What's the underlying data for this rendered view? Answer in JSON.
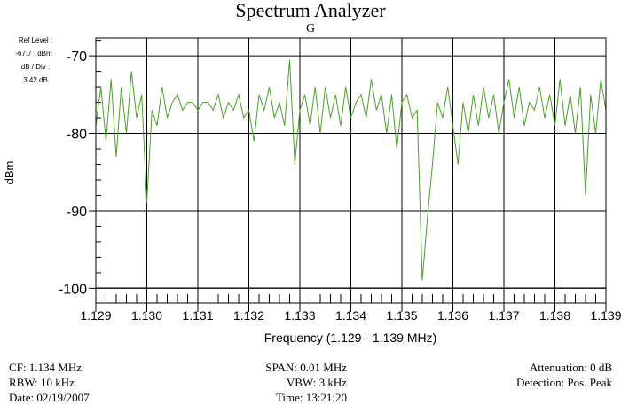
{
  "chart_data": {
    "type": "line",
    "title": "Spectrum Analyzer",
    "subtitle": "G",
    "xlabel": "Frequency (1.129 - 1.139 MHz)",
    "ylabel": "dBm",
    "xlim": [
      1.129,
      1.139
    ],
    "ylim": [
      -101.9,
      -67.7
    ],
    "grid": true,
    "line_color": "#4c9e2c",
    "x_ticks": [
      "1.129",
      "1.130",
      "1.131",
      "1.132",
      "1.133",
      "1.134",
      "1.135",
      "1.136",
      "1.137",
      "1.138",
      "1.139"
    ],
    "y_ticks": [
      "-70",
      "-80",
      "-90",
      "-100"
    ],
    "y_tick_values": [
      -70,
      -80,
      -90,
      -100
    ],
    "x": [
      1.129,
      1.1291,
      1.1292,
      1.1293,
      1.1294,
      1.1295,
      1.1296,
      1.1297,
      1.1298,
      1.1299,
      1.13,
      1.1301,
      1.1302,
      1.1303,
      1.1304,
      1.1305,
      1.1306,
      1.1307,
      1.1308,
      1.1309,
      1.131,
      1.1311,
      1.1312,
      1.1313,
      1.1314,
      1.1315,
      1.1316,
      1.1317,
      1.1318,
      1.1319,
      1.132,
      1.1321,
      1.1322,
      1.1323,
      1.1324,
      1.1325,
      1.1326,
      1.1327,
      1.1328,
      1.1329,
      1.133,
      1.1331,
      1.1332,
      1.1333,
      1.1334,
      1.1335,
      1.1336,
      1.1337,
      1.1338,
      1.1339,
      1.134,
      1.1341,
      1.1342,
      1.1343,
      1.1344,
      1.1345,
      1.1346,
      1.1347,
      1.1348,
      1.1349,
      1.135,
      1.1351,
      1.1352,
      1.1353,
      1.1354,
      1.1355,
      1.1356,
      1.1357,
      1.1358,
      1.1359,
      1.136,
      1.1361,
      1.1362,
      1.1363,
      1.1364,
      1.1365,
      1.1366,
      1.1367,
      1.1368,
      1.1369,
      1.137,
      1.1371,
      1.1372,
      1.1373,
      1.1374,
      1.1375,
      1.1376,
      1.1377,
      1.1378,
      1.1379,
      1.138,
      1.1381,
      1.1382,
      1.1383,
      1.1384,
      1.1385,
      1.1386,
      1.1387,
      1.1388,
      1.1389,
      1.139
    ],
    "values": [
      -79,
      -74,
      -81,
      -73,
      -83,
      -74,
      -80,
      -72,
      -78,
      -75,
      -89,
      -77,
      -79,
      -74,
      -78,
      -76,
      -75,
      -77,
      -76,
      -76,
      -77,
      -76,
      -76,
      -77,
      -75,
      -78,
      -76,
      -77,
      -75,
      -78,
      -77,
      -81,
      -75,
      -77,
      -74,
      -78,
      -76,
      -79,
      -70.5,
      -84,
      -77,
      -75,
      -79,
      -74,
      -80,
      -74,
      -78,
      -75,
      -79,
      -74,
      -78,
      -76,
      -75,
      -78,
      -73,
      -77,
      -75,
      -80,
      -75,
      -82,
      -76,
      -75,
      -78,
      -77,
      -99,
      -91,
      -84,
      -76,
      -78,
      -74,
      -79,
      -84,
      -76,
      -80,
      -75,
      -79,
      -74,
      -78,
      -75,
      -80,
      -76,
      -73,
      -78,
      -74,
      -79,
      -76,
      -77,
      -74,
      -78,
      -75,
      -79,
      -73,
      -79,
      -75,
      -80,
      -74,
      -88,
      -75,
      -80,
      -73,
      -77
    ]
  },
  "settings": {
    "ref_level_label": "Ref Level :",
    "ref_level_value": "-67.7   dBm",
    "db_div_label": "dB / Div :",
    "db_div_value": "3.42 dB"
  },
  "footer": {
    "cf": "CF: 1.134 MHz",
    "rbw": "RBW: 10 kHz",
    "date": "Date: 02/19/2007",
    "span": "SPAN: 0.01 MHz",
    "vbw": "VBW: 3 kHz",
    "time": "Time: 13:21:20",
    "attenuation": "Attenuation: 0 dB",
    "detection": "Detection: Pos. Peak"
  }
}
